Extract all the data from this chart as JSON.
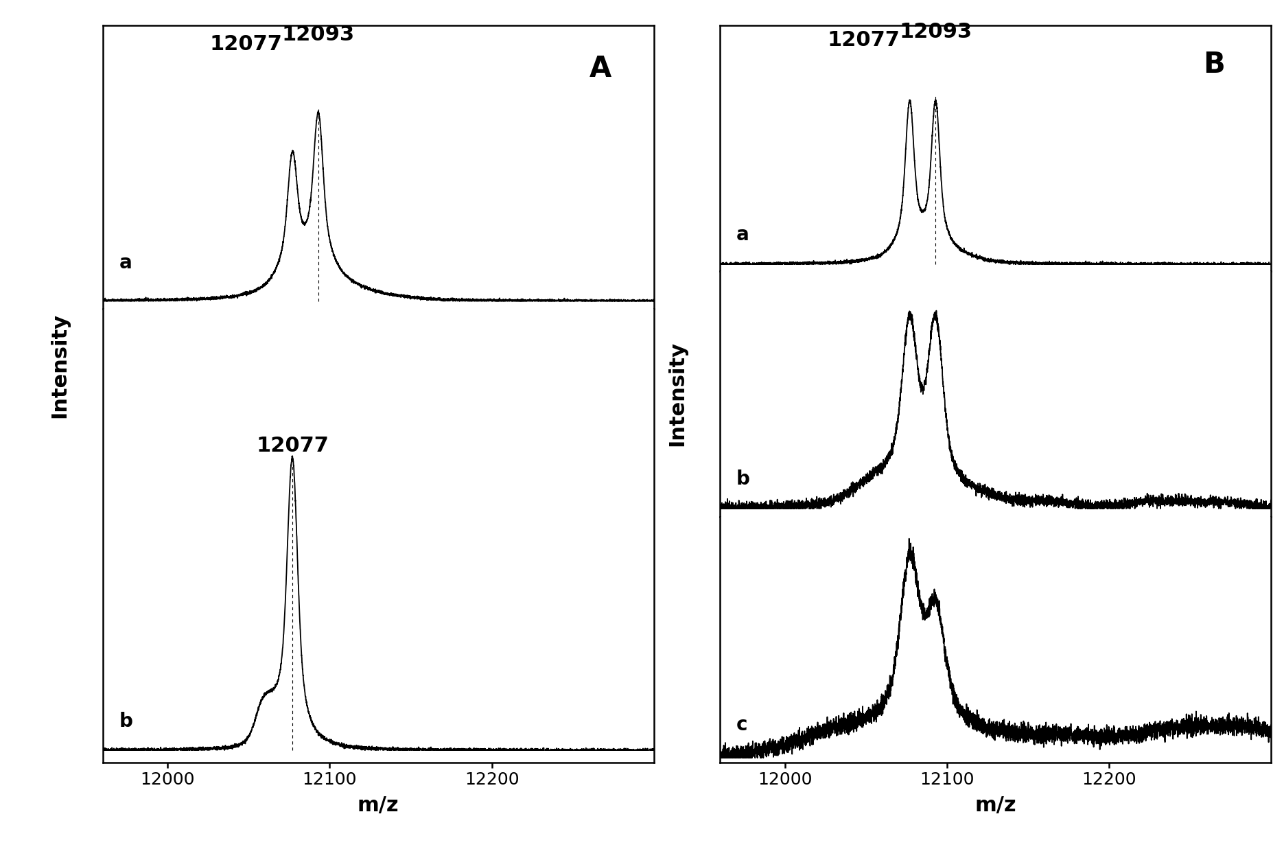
{
  "xlim": [
    11960,
    12300
  ],
  "xticks": [
    12000,
    12100,
    12200
  ],
  "xlabel": "m/z",
  "ylabel": "Intensity",
  "peak1": 12077,
  "peak2": 12093,
  "panel_A_label": "A",
  "panel_B_label": "B",
  "line_color": "#000000",
  "background_color": "#ffffff",
  "label_fontsize": 22,
  "tick_fontsize": 18,
  "annotation_fontsize": 22,
  "sublabel_fontsize": 20,
  "panel_letter_fontsize": 30
}
